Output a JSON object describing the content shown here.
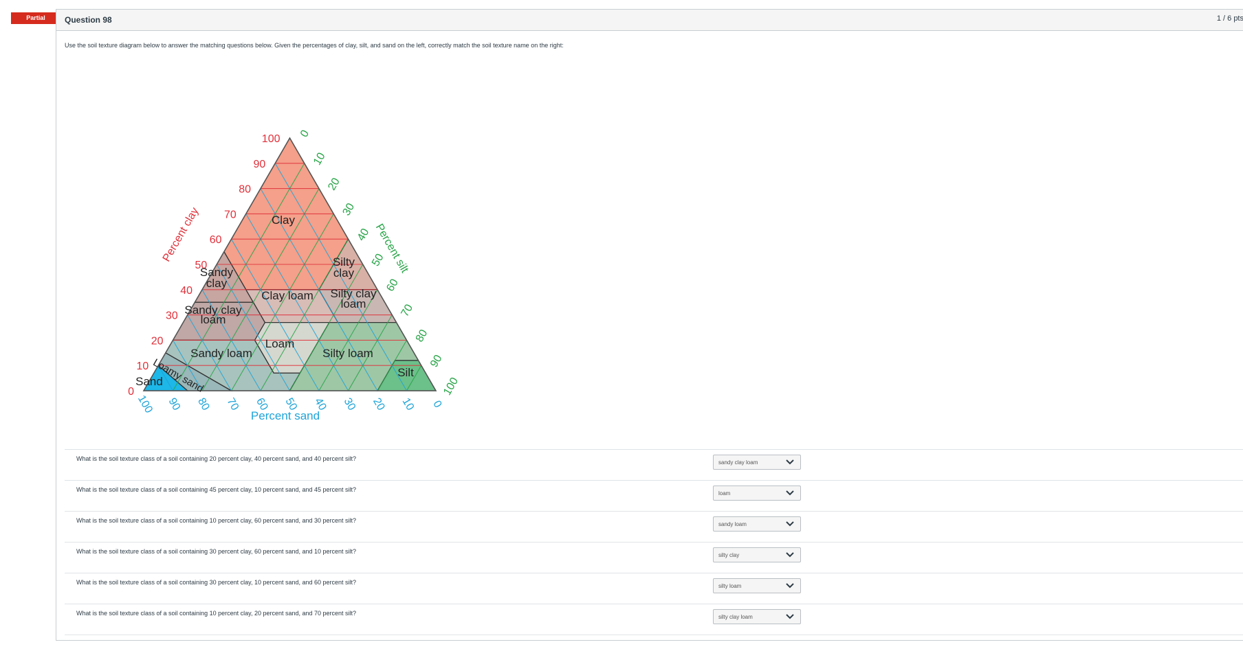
{
  "status_badge": "Partial",
  "question": {
    "title": "Question 98",
    "points": "1 / 6 pts",
    "text": "Use the soil texture diagram below to answer the matching questions below.  Given the percentages of clay, silt, and sand on the left, correctly match the soil texture name on the right:"
  },
  "diagram": {
    "clay_axis_label": "Percent clay",
    "silt_axis_label": "Percent silt",
    "sand_axis_label": "Percent sand",
    "clay_ticks": [
      "0",
      "10",
      "20",
      "30",
      "40",
      "50",
      "60",
      "70",
      "80",
      "90",
      "100"
    ],
    "silt_ticks": [
      "0",
      "10",
      "20",
      "30",
      "40",
      "50",
      "60",
      "70",
      "80",
      "90",
      "100"
    ],
    "sand_ticks": [
      "100",
      "90",
      "80",
      "70",
      "60",
      "50",
      "40",
      "30",
      "20",
      "10",
      "0"
    ],
    "regions": {
      "clay": "Clay",
      "silty_clay": [
        "Silty",
        "clay"
      ],
      "sandy_clay": [
        "Sandy",
        "clay"
      ],
      "clay_loam": "Clay loam",
      "silty_clay_loam": [
        "Silty clay",
        "loam"
      ],
      "sandy_clay_loam": [
        "Sandy clay",
        "loam"
      ],
      "loam": "Loam",
      "sandy_loam": "Sandy loam",
      "silty_loam": "Silty loam",
      "silt": "Silt",
      "loamy_sand": "Loamy sand",
      "sand": "Sand"
    },
    "colors": {
      "clay": "#f4a08a",
      "clay_axis": "#e0303a",
      "silt_axis": "#27a447",
      "sand_axis": "#1fa4d8"
    }
  },
  "matches": [
    {
      "prompt": "What is the soil texture class of a soil containing 20 percent clay, 40 percent sand, and 40 percent silt?",
      "answer": "sandy clay loam"
    },
    {
      "prompt": "What is the soil texture class of a soil containing 45 percent clay, 10 percent sand, and 45 percent silt?",
      "answer": "loam"
    },
    {
      "prompt": "What is the soil texture class of a soil containing 10 percent clay, 60 percent sand, and 30 percent silt?",
      "answer": "sandy loam"
    },
    {
      "prompt": "What is the soil texture class of a soil containing 30 percent clay, 60 percent sand, and 10 percent silt?",
      "answer": "silty clay"
    },
    {
      "prompt": "What is the soil texture class of a soil containing 30 percent clay, 10 percent sand, and 60 percent silt?",
      "answer": "silty loam"
    },
    {
      "prompt": "What is the soil texture class of a soil containing 10 percent clay, 20 percent sand, and 70 percent silt?",
      "answer": "silty clay loam"
    }
  ]
}
